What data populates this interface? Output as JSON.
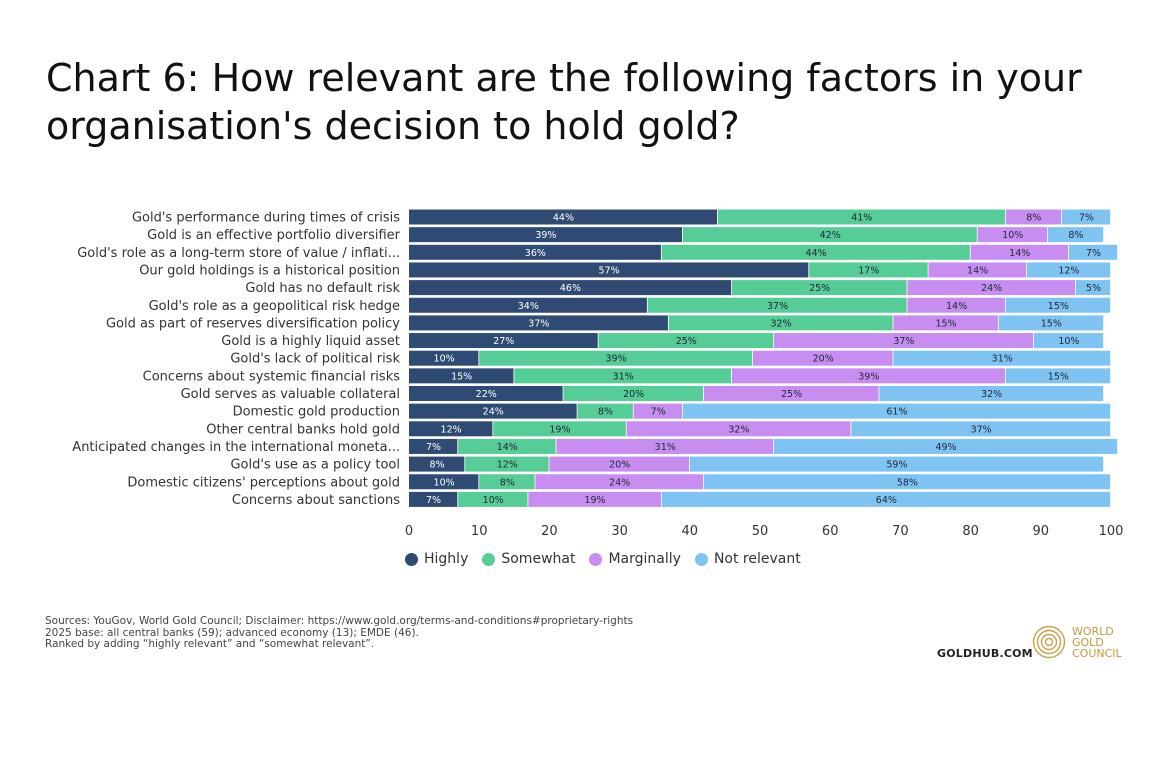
{
  "title": "Chart 6: How relevant are the following factors in your organisation's decision to hold gold?",
  "colors": {
    "highly": "#2f4b73",
    "somewhat": "#56cc96",
    "marginally": "#c88df0",
    "not_relevant": "#7fc3f2"
  },
  "legend": [
    {
      "label": "Highly",
      "color": "#2f4b73"
    },
    {
      "label": "Somewhat",
      "color": "#56cc96"
    },
    {
      "label": "Marginally",
      "color": "#c88df0"
    },
    {
      "label": "Not relevant",
      "color": "#7fc3f2"
    }
  ],
  "chart_data": {
    "type": "bar",
    "orientation": "horizontal",
    "stacked": true,
    "title": "Chart 6: How relevant are the following factors in your organisation's decision to hold gold?",
    "xlim": [
      0,
      100
    ],
    "xticks": [
      0,
      10,
      20,
      30,
      40,
      50,
      60,
      70,
      80,
      90,
      100
    ],
    "grid": false,
    "legend_position": "bottom",
    "categories": [
      "Gold's performance during times of crisis",
      "Gold is an effective portfolio diversifier",
      "Gold's role as a long-term store of value / inflati...",
      "Our gold holdings is a historical position",
      "Gold has no default risk",
      "Gold's role as a geopolitical risk hedge",
      "Gold as part of reserves diversification policy",
      "Gold is a highly liquid asset",
      "Gold's lack of political risk",
      "Concerns about systemic financial risks",
      "Gold serves as valuable collateral",
      "Domestic gold production",
      "Other central banks hold gold",
      "Anticipated changes in the international moneta...",
      "Gold's use as a policy tool",
      "Domestic citizens' perceptions about gold",
      "Concerns about sanctions"
    ],
    "series": [
      {
        "name": "Highly",
        "values": [
          44,
          39,
          36,
          57,
          46,
          34,
          37,
          27,
          10,
          15,
          22,
          24,
          12,
          7,
          8,
          10,
          7
        ]
      },
      {
        "name": "Somewhat",
        "values": [
          41,
          42,
          44,
          17,
          25,
          37,
          32,
          25,
          39,
          31,
          20,
          8,
          19,
          14,
          12,
          8,
          10
        ]
      },
      {
        "name": "Marginally",
        "values": [
          8,
          10,
          14,
          14,
          24,
          14,
          15,
          37,
          20,
          39,
          25,
          7,
          32,
          31,
          20,
          24,
          19
        ]
      },
      {
        "name": "Not relevant",
        "values": [
          7,
          8,
          7,
          12,
          5,
          15,
          15,
          10,
          31,
          15,
          32,
          61,
          37,
          49,
          59,
          58,
          64
        ]
      }
    ]
  },
  "footnotes": [
    "Sources: YouGov, World Gold Council; Disclaimer: https://www.gold.org/terms-and-conditions#proprietary-rights",
    "2025 base: all central banks (59); advanced economy (13); EMDE (46).",
    "Ranked by adding “highly relevant” and “somewhat relevant”."
  ],
  "goldhub": "GOLDHUB.COM",
  "wgc_logo": [
    "WORLD",
    "GOLD",
    "COUNCIL"
  ]
}
